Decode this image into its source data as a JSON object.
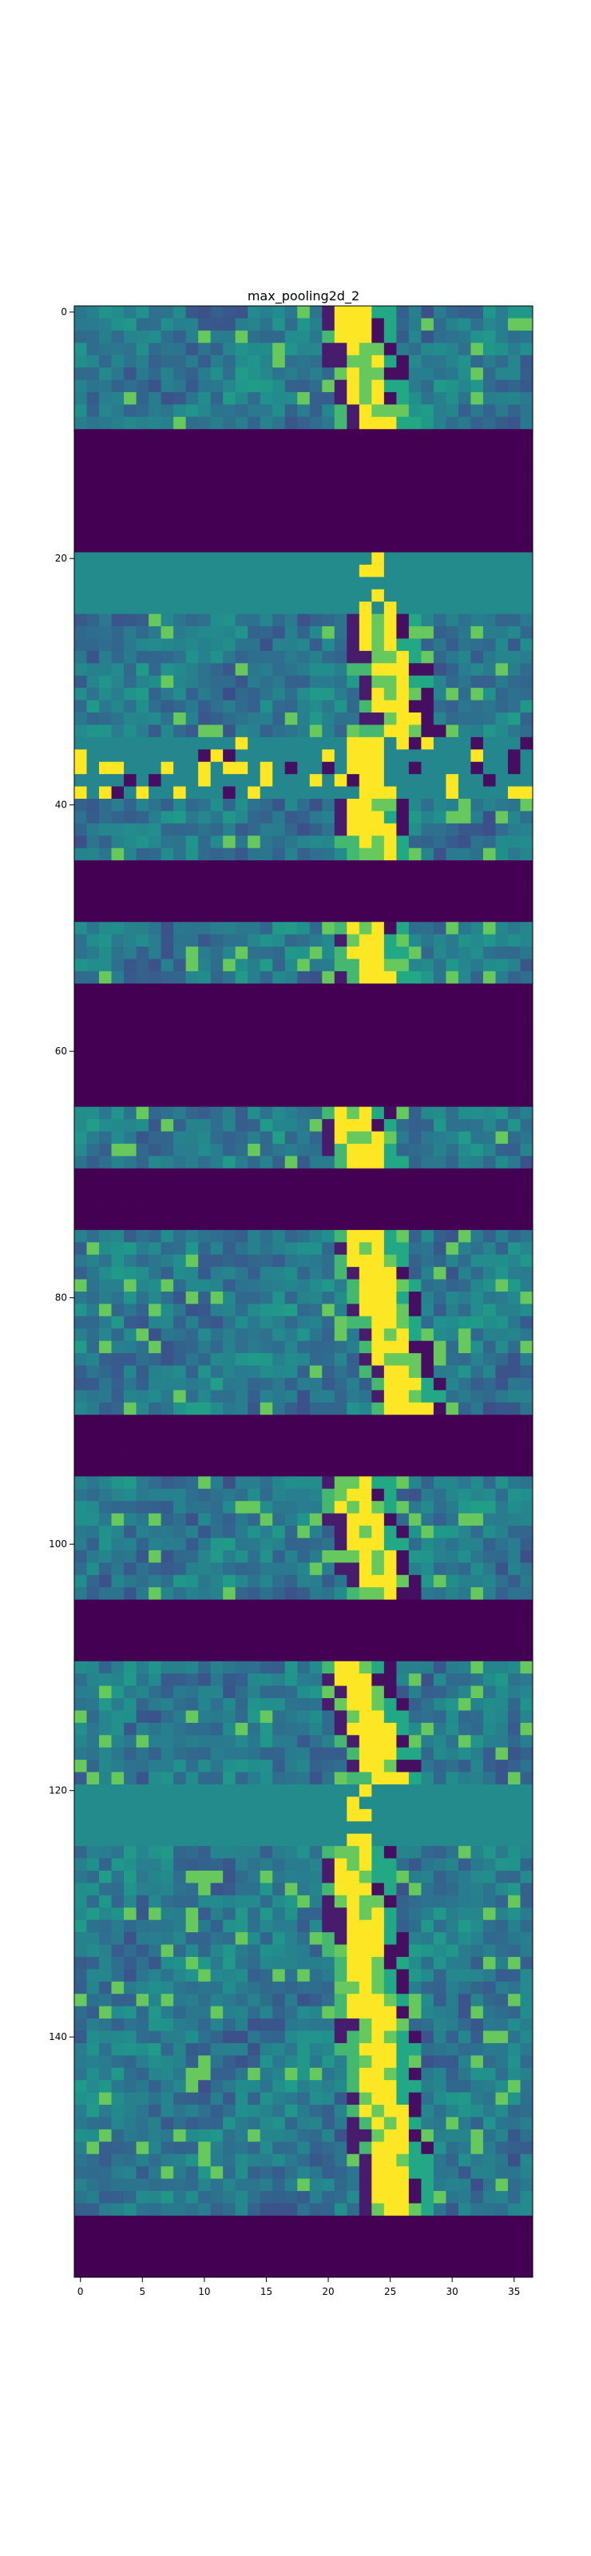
{
  "chart_data": {
    "type": "heatmap",
    "title": "max_pooling2d_2",
    "xlabel": "",
    "ylabel": "",
    "colormap": "viridis",
    "x_ticks": [
      0,
      5,
      10,
      15,
      20,
      25,
      30,
      35
    ],
    "y_ticks": [
      0,
      20,
      40,
      60,
      80,
      100,
      120,
      140
    ],
    "xlim": [
      -0.5,
      36.5
    ],
    "ylim": [
      159.5,
      -0.5
    ],
    "grid": false,
    "colors": {
      "dark": "#440154",
      "teal": "#21918c",
      "yellow": "#fde725"
    },
    "bands": [
      {
        "rows": [
          0,
          9
        ],
        "pattern": "features",
        "streak_x": 22,
        "tilt": 0.2
      },
      {
        "rows": [
          10,
          19
        ],
        "pattern": "dark"
      },
      {
        "rows": [
          20,
          24
        ],
        "pattern": "flat",
        "streak_x": 23,
        "tilt": 0.25
      },
      {
        "rows": [
          25,
          34
        ],
        "pattern": "features",
        "streak_x": 24,
        "tilt": 0.2
      },
      {
        "rows": [
          35,
          39
        ],
        "pattern": "speckle",
        "streak_x": 23,
        "tilt": 0.2
      },
      {
        "rows": [
          40,
          44
        ],
        "pattern": "features",
        "streak_x": 23,
        "tilt": 0.25
      },
      {
        "rows": [
          45,
          49
        ],
        "pattern": "dark"
      },
      {
        "rows": [
          50,
          54
        ],
        "pattern": "features",
        "streak_x": 23,
        "tilt": 0.2
      },
      {
        "rows": [
          55,
          64
        ],
        "pattern": "dark"
      },
      {
        "rows": [
          65,
          69
        ],
        "pattern": "features",
        "streak_x": 22,
        "tilt": 0.25
      },
      {
        "rows": [
          70,
          74
        ],
        "pattern": "dark"
      },
      {
        "rows": [
          75,
          89
        ],
        "pattern": "features",
        "streak_x": 23,
        "tilt": 0.25
      },
      {
        "rows": [
          90,
          94
        ],
        "pattern": "dark"
      },
      {
        "rows": [
          95,
          104
        ],
        "pattern": "features",
        "streak_x": 22,
        "tilt": 0.25
      },
      {
        "rows": [
          105,
          109
        ],
        "pattern": "dark"
      },
      {
        "rows": [
          110,
          119
        ],
        "pattern": "features",
        "streak_x": 22,
        "tilt": 0.3
      },
      {
        "rows": [
          120,
          124
        ],
        "pattern": "flat",
        "streak_x": 22,
        "tilt": 0.2
      },
      {
        "rows": [
          125,
          154
        ],
        "pattern": "features",
        "streak_x": 22,
        "tilt": 0.12
      },
      {
        "rows": [
          155,
          159
        ],
        "pattern": "dark"
      }
    ]
  }
}
